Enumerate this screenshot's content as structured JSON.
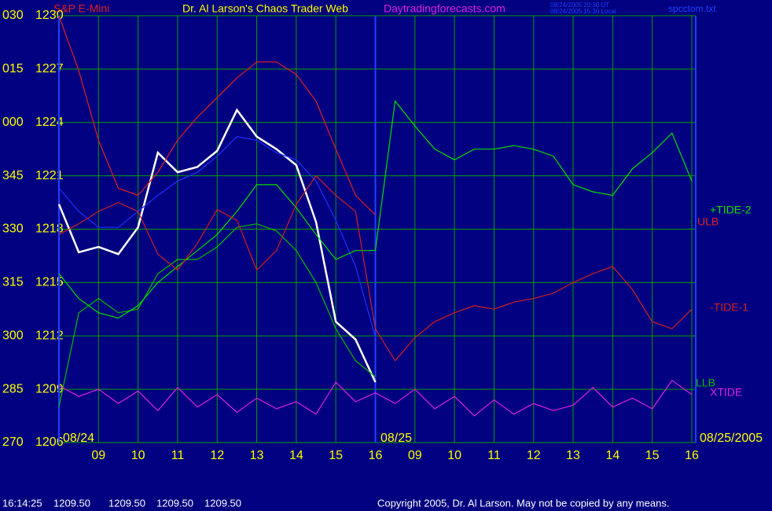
{
  "chart_data": {
    "type": "line",
    "instrument": "S&P E-Mini",
    "title": "Dr. Al Larson's Chaos Trader Web",
    "site": "Daytradingforecasts.com",
    "timestamps": [
      "08/24/2005 20:30 UT",
      "08/24/2005 15:30 Local"
    ],
    "file": "spcctom.txt",
    "date_labels": [
      "08/24",
      "08/25",
      "08/25/2005"
    ],
    "status": {
      "time": "16:14:25",
      "quotes": [
        "1209.50",
        "1209.50",
        "1209.50",
        "1209.50"
      ]
    },
    "copyright": "Copyright 2005, Dr. Al Larson. May not be copied by any means.",
    "x": [
      0,
      0.5,
      1,
      1.5,
      2,
      2.5,
      3,
      3.5,
      4,
      4.5,
      5,
      5.5,
      6,
      6.5,
      7,
      7.5,
      8,
      8.5,
      9,
      9.5,
      10,
      10.5,
      11,
      11.5,
      12,
      12.5,
      13,
      13.5,
      14,
      14.5,
      15,
      15.5,
      16
    ],
    "xlim": [
      0,
      16.1
    ],
    "xticks": [
      {
        "value": 1,
        "label": "09"
      },
      {
        "value": 2,
        "label": "10"
      },
      {
        "value": 3,
        "label": "11"
      },
      {
        "value": 4,
        "label": "12"
      },
      {
        "value": 5,
        "label": "13"
      },
      {
        "value": 6,
        "label": "14"
      },
      {
        "value": 7,
        "label": "15"
      },
      {
        "value": 8,
        "label": "16"
      },
      {
        "value": 9,
        "label": "09"
      },
      {
        "value": 10,
        "label": "10"
      },
      {
        "value": 11,
        "label": "11"
      },
      {
        "value": 12,
        "label": "12"
      },
      {
        "value": 13,
        "label": "13"
      },
      {
        "value": 14,
        "label": "14"
      },
      {
        "value": 15,
        "label": "15"
      },
      {
        "value": 16,
        "label": "16"
      }
    ],
    "ylim": [
      1206,
      1230
    ],
    "yticks": [
      1206,
      1209,
      1212,
      1215,
      1218,
      1221,
      1224,
      1227,
      1230
    ],
    "y2lim": [
      270,
      390
    ],
    "y2ticks": [
      270,
      285,
      300,
      315,
      330,
      345,
      {
        "value": 360,
        "label": "000"
      },
      {
        "value": 375,
        "label": "015"
      },
      {
        "value": 390,
        "label": "030"
      }
    ],
    "grid": true,
    "series": [
      {
        "color": "#ffffff",
        "values": [
          1219.4,
          1216.7,
          1217.0,
          1216.6,
          1218.1,
          1222.3,
          1221.2,
          1221.5,
          1222.4,
          1224.7,
          1223.2,
          1222.5,
          1221.6,
          1218.4,
          1212.8,
          1211.8,
          1209.4,
          null,
          null,
          null,
          null,
          null,
          null,
          null,
          null,
          null,
          null,
          null,
          null,
          null,
          null,
          null,
          null
        ]
      },
      {
        "color": "#2030ff",
        "values": [
          1220.3,
          1219.0,
          1218.1,
          1218.1,
          1219.0,
          1219.9,
          1220.7,
          1221.2,
          1222.1,
          1223.2,
          1223.0,
          1222.3,
          1221.9,
          1220.7,
          1218.5,
          1215.9,
          1211.9,
          null,
          null,
          null,
          null,
          null,
          null,
          null,
          null,
          null,
          null,
          null,
          null,
          null,
          null,
          null,
          null
        ]
      },
      {
        "name": "ULB",
        "color": "#e02020",
        "values": [
          1230,
          1226.9,
          1223.0,
          1220.3,
          1219.9,
          1221.2,
          1223.0,
          1224.3,
          1225.4,
          1226.5,
          1227.4,
          1227.4,
          1226.7,
          1225.2,
          1222.5,
          1219.9,
          1218.8,
          null,
          null,
          null,
          null,
          null,
          null,
          null,
          null,
          null,
          null,
          null,
          null,
          null,
          null,
          null,
          null
        ]
      },
      {
        "name": "LLB",
        "color": "#00c000",
        "values": [
          1208.0,
          1213.3,
          1214.1,
          1213.3,
          1213.5,
          1215.5,
          1216.3,
          1216.3,
          1217.0,
          1218.1,
          1218.3,
          1217.9,
          1216.8,
          1215.0,
          1212.4,
          1210.6,
          1209.7,
          null,
          null,
          null,
          null,
          null,
          null,
          null,
          null,
          null,
          null,
          null,
          null,
          null,
          null,
          null,
          null
        ]
      },
      {
        "name": "+TIDE-2",
        "color": "#00e000",
        "values": [
          1215.5,
          1214.1,
          1213.3,
          1213.0,
          1213.7,
          1215.0,
          1215.9,
          1216.8,
          1217.7,
          1219.0,
          1220.5,
          1220.5,
          1219.2,
          1217.7,
          1216.3,
          1216.8,
          1216.8,
          1225.2,
          1223.8,
          1222.5,
          1221.9,
          1222.5,
          1222.5,
          1222.7,
          1222.5,
          1222.1,
          1220.5,
          1220.1,
          1219.9,
          1221.4,
          1222.3,
          1223.4,
          1220.7
        ]
      },
      {
        "name": "-TIDE-1",
        "color": "#d02020",
        "values": [
          1217.7,
          1218.3,
          1219.0,
          1219.5,
          1219.0,
          1216.6,
          1215.7,
          1217.2,
          1219.1,
          1218.5,
          1215.7,
          1216.8,
          1219.4,
          1221.0,
          1219.9,
          1219.0,
          1212.4,
          1210.6,
          1211.9,
          1212.8,
          1213.3,
          1213.7,
          1213.5,
          1213.9,
          1214.1,
          1214.4,
          1215.0,
          1215.5,
          1215.9,
          1214.6,
          1212.8,
          1212.4,
          1213.5
        ]
      },
      {
        "name": "XTIDE",
        "color": "#e020e0",
        "values": [
          1209.2,
          1208.6,
          1209.0,
          1208.2,
          1208.9,
          1207.8,
          1209.1,
          1208.0,
          1208.7,
          1207.7,
          1208.5,
          1207.9,
          1208.3,
          1207.6,
          1209.4,
          1208.3,
          1208.8,
          1208.2,
          1209.0,
          1207.9,
          1208.6,
          1207.5,
          1208.4,
          1207.6,
          1208.2,
          1207.8,
          1208.1,
          1209.1,
          1208.0,
          1208.5,
          1207.9,
          1209.5,
          1208.7
        ]
      }
    ]
  }
}
